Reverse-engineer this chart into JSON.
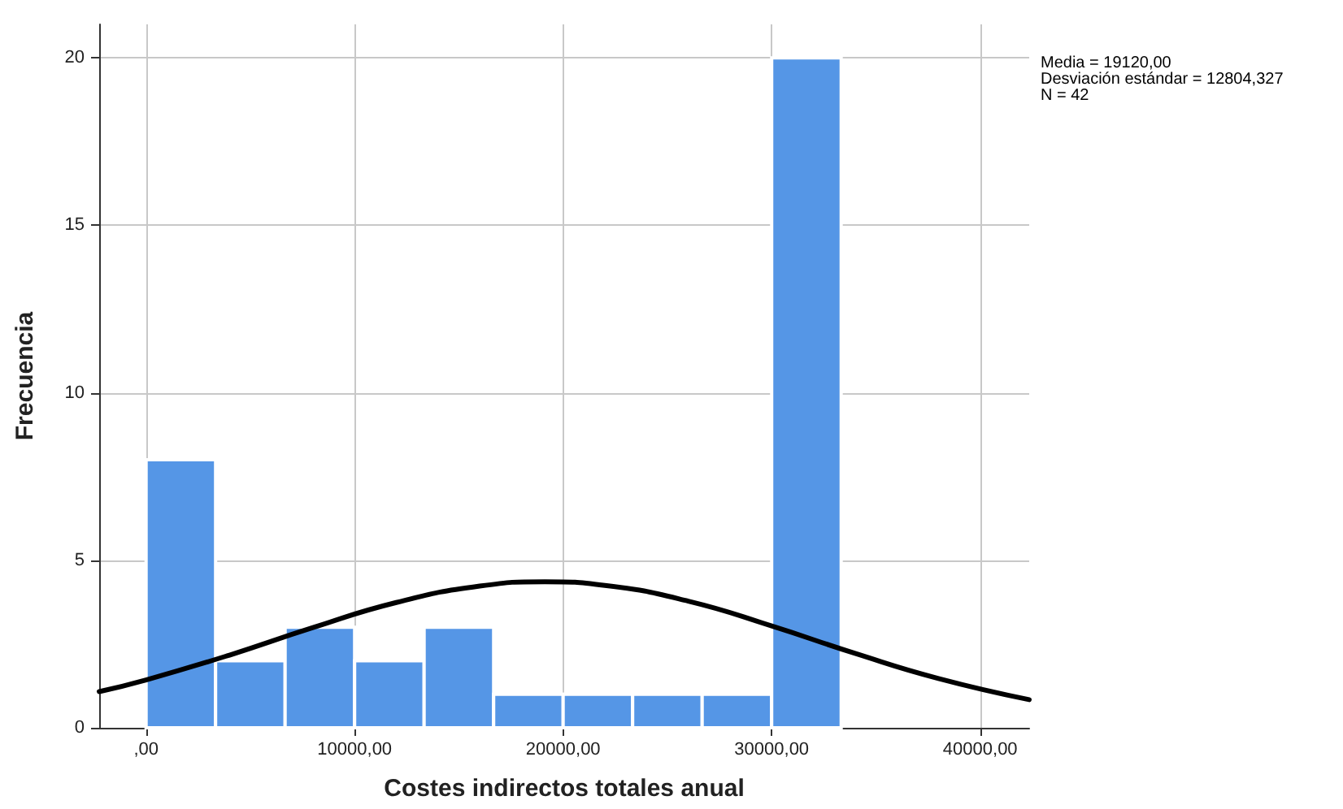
{
  "chart_data": {
    "type": "histogram",
    "xlabel": "Costes indirectos totales anual",
    "ylabel": "Frecuencia",
    "bins": [
      0,
      3333,
      6667,
      10000,
      13333,
      16667,
      20000,
      23333,
      26667,
      30000,
      33333
    ],
    "values": [
      8,
      2,
      3,
      2,
      3,
      1,
      1,
      1,
      1,
      20
    ],
    "color": "#5596e6",
    "series": [
      {
        "type": "line",
        "color": "#000000",
        "x": [
          -2250,
          0,
          4000,
          8000,
          12000,
          16000,
          19120,
          22000,
          26000,
          30000,
          34000,
          38000,
          42350
        ],
        "values": [
          1.08,
          1.43,
          2.17,
          2.99,
          3.74,
          4.23,
          4.36,
          4.25,
          3.78,
          3.04,
          2.22,
          1.47,
          0.84
        ]
      }
    ],
    "xlim": [
      -2250,
      42350
    ],
    "xticks": [
      {
        "value": 0,
        "label": ",00"
      },
      {
        "value": 10000,
        "label": "10000,00"
      },
      {
        "value": 20000,
        "label": "20000,00"
      },
      {
        "value": 30000,
        "label": "30000,00"
      },
      {
        "value": 40000,
        "label": "40000,00"
      }
    ],
    "ylim": [
      0,
      21
    ],
    "yticks": [
      0,
      5,
      10,
      15,
      20
    ],
    "grid": true,
    "annotations": [
      "Media = 19120,00",
      "Desviación estándar = 12804,327",
      "N = 42"
    ]
  }
}
